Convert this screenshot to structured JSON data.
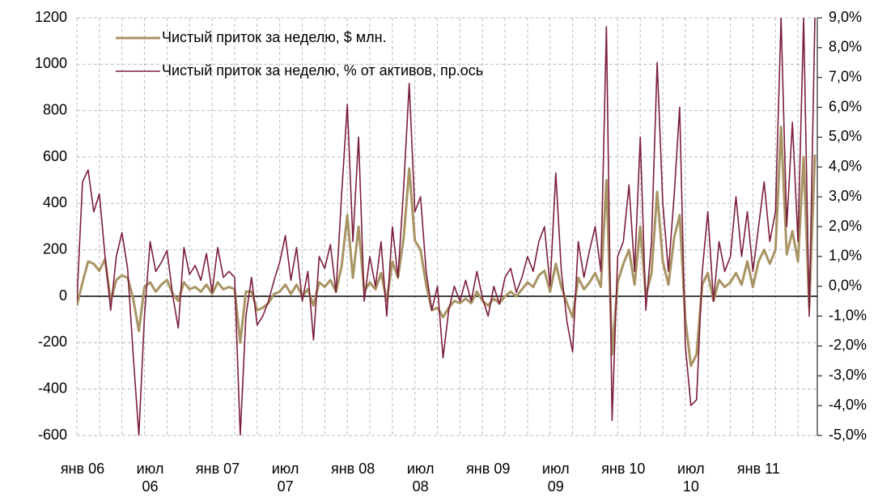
{
  "chart_data": {
    "type": "line",
    "categories": [
      null,
      "янв 06",
      null,
      null,
      null,
      null,
      null,
      null,
      null,
      null,
      null,
      null,
      null,
      "июл 06",
      null,
      null,
      null,
      null,
      null,
      null,
      null,
      null,
      null,
      null,
      null,
      "янв 07",
      null,
      null,
      null,
      null,
      null,
      null,
      null,
      null,
      null,
      null,
      null,
      "июл 07",
      null,
      null,
      null,
      null,
      null,
      null,
      null,
      null,
      null,
      null,
      null,
      "янв 08",
      null,
      null,
      null,
      null,
      null,
      null,
      null,
      null,
      null,
      null,
      null,
      "июл 08",
      null,
      null,
      null,
      null,
      null,
      null,
      null,
      null,
      null,
      null,
      null,
      "янв 09",
      null,
      null,
      null,
      null,
      null,
      null,
      null,
      null,
      null,
      null,
      null,
      "июл 09",
      null,
      null,
      null,
      null,
      null,
      null,
      null,
      null,
      null,
      null,
      null,
      "янв 10",
      null,
      null,
      null,
      null,
      null,
      null,
      null,
      null,
      null,
      null,
      null,
      "июл 10",
      null,
      null,
      null,
      null,
      null,
      null,
      null,
      null,
      null,
      null,
      null,
      "янв 11",
      null,
      null,
      null,
      null,
      null,
      null,
      null,
      null,
      null,
      null
    ],
    "series": [
      {
        "name": "Чистый приток за неделю, $ млн.",
        "color": "#a89464",
        "axis": "y",
        "values": [
          -40,
          60,
          150,
          140,
          110,
          160,
          -20,
          70,
          90,
          80,
          -10,
          -150,
          40,
          60,
          20,
          50,
          70,
          10,
          -20,
          60,
          30,
          40,
          20,
          50,
          10,
          60,
          30,
          40,
          30,
          -200,
          20,
          20,
          -60,
          -50,
          -30,
          10,
          20,
          50,
          10,
          50,
          0,
          30,
          -40,
          60,
          40,
          70,
          20,
          130,
          350,
          80,
          300,
          20,
          60,
          30,
          100,
          -20,
          150,
          80,
          250,
          550,
          240,
          200,
          50,
          -60,
          -50,
          -90,
          -50,
          -20,
          -30,
          -10,
          -30,
          20,
          -20,
          -40,
          -10,
          -30,
          0,
          20,
          0,
          30,
          60,
          40,
          90,
          110,
          20,
          140,
          40,
          -30,
          -90,
          80,
          30,
          60,
          100,
          40,
          500,
          -250,
          60,
          140,
          200,
          50,
          300,
          0,
          100,
          450,
          150,
          50,
          250,
          350,
          -100,
          -300,
          -250,
          50,
          100,
          -20,
          70,
          40,
          60,
          100,
          50,
          150,
          40,
          150,
          200,
          140,
          200,
          730,
          180,
          280,
          150,
          600,
          -50,
          610
        ]
      },
      {
        "name": "Чистый приток за неделю, % от активов, пр.ось",
        "color": "#7b1e3c",
        "axis": "y2",
        "values": [
          -0.5,
          3.5,
          3.9,
          2.5,
          3.1,
          1.0,
          -0.8,
          1.0,
          1.8,
          0.6,
          -2.3,
          -5.0,
          -1.0,
          1.5,
          0.5,
          0.8,
          1.2,
          -0.3,
          -1.4,
          1.3,
          0.4,
          0.7,
          0.2,
          1.1,
          -0.2,
          1.3,
          0.3,
          0.5,
          0.3,
          -5.0,
          -1.0,
          0.3,
          -1.3,
          -1.0,
          -0.5,
          0.2,
          0.8,
          1.7,
          0.2,
          1.3,
          -0.5,
          0.5,
          -1.8,
          1.0,
          0.6,
          1.4,
          -0.2,
          3.1,
          6.1,
          1.5,
          5.0,
          -0.5,
          1.0,
          0.0,
          1.5,
          -1.0,
          2.0,
          0.3,
          3.3,
          6.8,
          2.5,
          3.0,
          0.5,
          -0.8,
          0.0,
          -2.4,
          -0.8,
          0.0,
          -0.5,
          0.2,
          -0.5,
          0.5,
          -0.4,
          -1.0,
          0.0,
          -0.6,
          0.3,
          0.6,
          -0.2,
          0.3,
          1.0,
          0.5,
          1.5,
          2.0,
          0.0,
          3.8,
          0.5,
          -1.2,
          -2.2,
          1.5,
          0.3,
          1.2,
          2.0,
          0.5,
          8.7,
          -4.5,
          1.0,
          1.5,
          3.4,
          0.5,
          5.0,
          -0.8,
          1.5,
          7.5,
          2.8,
          0.5,
          3.0,
          6.0,
          -2.0,
          -4.0,
          -3.8,
          0.5,
          2.5,
          -0.5,
          1.5,
          0.5,
          1.0,
          3.0,
          1.0,
          2.5,
          0.5,
          2.0,
          3.5,
          1.5,
          2.5,
          9.0,
          2.0,
          5.5,
          1.5,
          9.0,
          -1.0,
          9.0
        ]
      }
    ],
    "ylim": [
      -600,
      1200
    ],
    "yticks": [
      -600,
      -400,
      -200,
      0,
      200,
      400,
      600,
      800,
      1000,
      1200
    ],
    "y2lim": [
      -5,
      9
    ],
    "y2ticks": [
      {
        "value": -5,
        "label": "-5,0%"
      },
      {
        "value": -4,
        "label": "-4,0%"
      },
      {
        "value": -3,
        "label": "-3,0%"
      },
      {
        "value": -2,
        "label": "-2,0%"
      },
      {
        "value": -1,
        "label": "-1,0%"
      },
      {
        "value": 0,
        "label": "0,0%"
      },
      {
        "value": 1,
        "label": "1,0%"
      },
      {
        "value": 2,
        "label": "2,0%"
      },
      {
        "value": 3,
        "label": "3,0%"
      },
      {
        "value": 4,
        "label": "4,0%"
      },
      {
        "value": 5,
        "label": "5,0%"
      },
      {
        "value": 6,
        "label": "6,0%"
      },
      {
        "value": 7,
        "label": "7,0%"
      },
      {
        "value": 8,
        "label": "8,0%"
      },
      {
        "value": 9,
        "label": "9,0%"
      }
    ],
    "grid": true,
    "legend": "upper left"
  }
}
